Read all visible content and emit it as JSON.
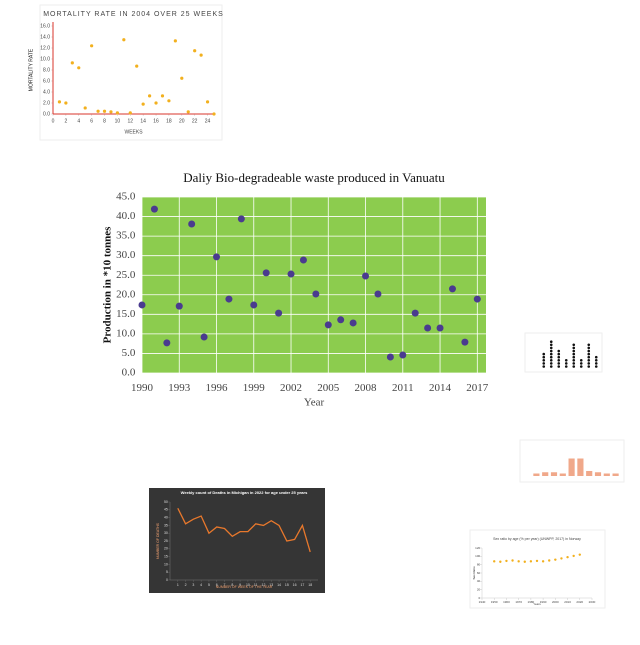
{
  "chart_data": [
    {
      "type": "scatter",
      "title": "MORTALITY RATE IN 2004 OVER 25 WEEKS",
      "x_label": "WEEKS",
      "y_label": "MORTALITY RATE",
      "x": [
        1,
        2,
        3,
        4,
        5,
        6,
        7,
        8,
        9,
        10,
        11,
        12,
        13,
        14,
        15,
        16,
        17,
        18,
        19,
        20,
        21,
        22,
        23,
        24,
        25
      ],
      "values": [
        2.2,
        2.0,
        9.3,
        8.4,
        1.1,
        12.4,
        0.5,
        0.5,
        0.4,
        0.2,
        13.5,
        0.2,
        8.7,
        1.8,
        3.3,
        2.0,
        3.3,
        2.4,
        13.3,
        6.5,
        0.4,
        11.5,
        10.7,
        2.2,
        0
      ],
      "color": "#f2b01e",
      "axis_color": "#d9342b",
      "xlim": [
        0,
        25
      ],
      "ylim": [
        0,
        16
      ],
      "xticks": [
        0,
        2,
        4,
        6,
        8,
        10,
        12,
        14,
        16,
        18,
        20,
        22,
        24
      ],
      "yticks": [
        {
          "value": 0,
          "label": "0.0"
        },
        {
          "value": 2,
          "label": "2.0"
        },
        {
          "value": 4,
          "label": "4.0"
        },
        {
          "value": 6,
          "label": "6.0"
        },
        {
          "value": 8,
          "label": "8.0"
        },
        {
          "value": 10,
          "label": "10.0"
        },
        {
          "value": 12,
          "label": "12.0"
        },
        {
          "value": 14,
          "label": "14.0"
        },
        {
          "value": 16,
          "label": "16.0"
        }
      ]
    },
    {
      "type": "scatter",
      "title": "Daliy Bio-degradeable  waste produced  in Vanuatu",
      "x_label": "Year",
      "y_label": "Production in *10 tonnes",
      "x": [
        1990,
        1991,
        1992,
        1993,
        1994,
        1995,
        1996,
        1997,
        1998,
        1999,
        2000,
        2001,
        2002,
        2003,
        2004,
        2005,
        2006,
        2007,
        2008,
        2009,
        2010,
        2011,
        2012,
        2013,
        2014,
        2015,
        2016,
        2017
      ],
      "values": [
        17.4,
        41.9,
        7.7,
        17.1,
        38.1,
        9.2,
        29.7,
        18.9,
        39.4,
        17.4,
        25.6,
        15.3,
        25.3,
        28.9,
        20.2,
        12.3,
        13.6,
        12.8,
        24.8,
        20.2,
        4.1,
        4.6,
        15.3,
        11.5,
        11.5,
        21.5,
        7.9,
        18.9
      ],
      "color": "#4a3b8f",
      "background": "#8ccc4e",
      "grid": true,
      "xlim": [
        1990,
        2017.7
      ],
      "ylim": [
        0,
        45
      ],
      "xticks": [
        1990,
        1993,
        1996,
        1999,
        2002,
        2005,
        2008,
        2011,
        2014,
        2017
      ],
      "yticks": [
        {
          "value": 0,
          "label": "0.0"
        },
        {
          "value": 5,
          "label": "5.0"
        },
        {
          "value": 10,
          "label": "10.0"
        },
        {
          "value": 15,
          "label": "15.0"
        },
        {
          "value": 20,
          "label": "20.0"
        },
        {
          "value": 25,
          "label": "25.0"
        },
        {
          "value": 30,
          "label": "30.0"
        },
        {
          "value": 35,
          "label": "35.0"
        },
        {
          "value": 40,
          "label": "40.0"
        },
        {
          "value": 45,
          "label": "45.0"
        }
      ]
    },
    {
      "type": "dot",
      "categories": [
        null,
        null,
        null,
        null,
        null,
        null,
        null,
        null
      ],
      "values": [
        5,
        9,
        6,
        3,
        8,
        3,
        8,
        4
      ],
      "color": "#111111"
    },
    {
      "type": "bar",
      "categories": [
        null,
        null,
        null,
        null,
        null,
        null,
        null,
        null,
        null,
        null
      ],
      "values": [
        1,
        1.5,
        1.5,
        1,
        7,
        7,
        2,
        1.5,
        1,
        1
      ],
      "color": "#f0a88a",
      "ylim": [
        0,
        8
      ]
    },
    {
      "type": "line",
      "title": "Weekly count of Deaths in Michigan in 2022 for age under 25 years",
      "x_label": "NUMBER OF WEEK OF THE YEAR",
      "y_label": "NUMBER OF DEATHS",
      "x": [
        1,
        2,
        3,
        4,
        5,
        6,
        7,
        8,
        9,
        10,
        11,
        12,
        13,
        14,
        15,
        16,
        17,
        18
      ],
      "values": [
        46,
        36,
        39,
        41,
        30,
        34,
        33,
        28,
        31,
        31,
        36,
        35,
        38,
        35,
        25,
        26,
        35,
        18
      ],
      "color": "#e8782c",
      "background": "#353535",
      "xlim": [
        0,
        19
      ],
      "ylim": [
        0,
        50
      ],
      "xticks": [
        1,
        2,
        3,
        4,
        5,
        6,
        7,
        8,
        9,
        10,
        11,
        12,
        13,
        14,
        15,
        16,
        17,
        18
      ],
      "yticks": [
        0,
        5,
        10,
        15,
        20,
        25,
        30,
        35,
        40,
        45,
        50
      ]
    },
    {
      "type": "scatter",
      "title": "Sex ratio by age (% per year) (UNWPP, 2017) in Norway",
      "x_label": "Years",
      "y_label": "Sex Ratio",
      "x": [
        1950,
        1955,
        1960,
        1965,
        1970,
        1975,
        1980,
        1985,
        1990,
        1995,
        2000,
        2005,
        2010,
        2015,
        2020
      ],
      "values": [
        88,
        87,
        89,
        90,
        88,
        87,
        88,
        89,
        88,
        90,
        92,
        95,
        98,
        101,
        104
      ],
      "color": "#f2b01e",
      "xlim": [
        1940,
        2030
      ],
      "ylim": [
        0,
        120
      ],
      "xticks": [
        1940,
        1950,
        1960,
        1970,
        1980,
        1990,
        2000,
        2010,
        2020,
        2030
      ],
      "yticks": [
        0,
        20,
        40,
        60,
        80,
        100,
        120
      ]
    }
  ]
}
